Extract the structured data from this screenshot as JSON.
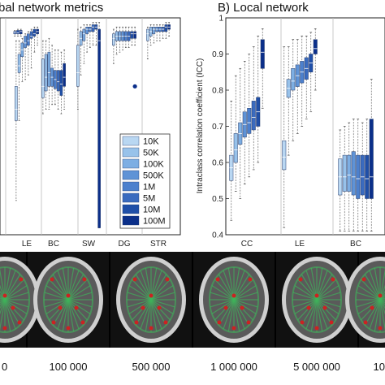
{
  "colors": {
    "series": [
      "#b9d7f2",
      "#98c2ea",
      "#7daee3",
      "#5f93d6",
      "#4c80cd",
      "#3a6bbf",
      "#1f4fa8",
      "#0b2f8a"
    ],
    "brain_bg": "#111111",
    "brain_skull": "#cfcfcf",
    "brain_tissue": "#5a5a5a",
    "brain_fibers": "#3fb35a",
    "brain_nodes": "#cc2222"
  },
  "chart_data": [
    {
      "type": "boxplot",
      "panel": "A",
      "title": "bal network metrics",
      "categories": [
        "LE",
        "BC",
        "SW",
        "DG",
        "STR"
      ],
      "category_labels_visible": [
        "",
        "LE",
        "BC",
        "SW",
        "DG",
        "STR"
      ],
      "series_names": [
        "10K",
        "50K",
        "100K",
        "500K",
        "1M",
        "5M",
        "10M",
        "100M"
      ],
      "legend_position": "lower-right",
      "groups": [
        {
          "category": "",
          "boxes": [
            {
              "whislo": 0.92,
              "q1": 0.93,
              "med": 0.935,
              "q3": 0.94,
              "whishi": 0.945
            },
            {
              "whislo": 0.92,
              "q1": 0.93,
              "med": 0.935,
              "q3": 0.945,
              "whishi": 0.95
            },
            {
              "whislo": 0.92,
              "q1": 0.93,
              "med": 0.94,
              "q3": 0.945,
              "whishi": 0.95
            }
          ]
        },
        {
          "category": "LE",
          "boxes": [
            {
              "whislo": 0.2,
              "q1": 0.55,
              "med": 0.6,
              "q3": 0.7,
              "whishi": 0.9
            },
            {
              "whislo": 0.55,
              "q1": 0.76,
              "med": 0.79,
              "q3": 0.84,
              "whishi": 0.9
            },
            {
              "whislo": 0.72,
              "q1": 0.83,
              "med": 0.86,
              "q3": 0.89,
              "whishi": 0.91
            },
            {
              "whislo": 0.73,
              "q1": 0.87,
              "med": 0.89,
              "q3": 0.92,
              "whishi": 0.93
            },
            {
              "whislo": 0.75,
              "q1": 0.88,
              "med": 0.9,
              "q3": 0.93,
              "whishi": 0.94
            },
            {
              "whislo": 0.78,
              "q1": 0.91,
              "med": 0.92,
              "q3": 0.94,
              "whishi": 0.95
            },
            {
              "whislo": 0.85,
              "q1": 0.92,
              "med": 0.93,
              "q3": 0.95,
              "whishi": 0.96
            },
            {
              "whislo": 0.88,
              "q1": 0.93,
              "med": 0.94,
              "q3": 0.95,
              "whishi": 0.96
            }
          ]
        },
        {
          "category": "BC",
          "boxes": [
            {
              "whislo": 0.58,
              "q1": 0.65,
              "med": 0.7,
              "q3": 0.82,
              "whishi": 0.9
            },
            {
              "whislo": 0.6,
              "q1": 0.68,
              "med": 0.74,
              "q3": 0.84,
              "whishi": 0.9
            },
            {
              "whislo": 0.6,
              "q1": 0.7,
              "med": 0.76,
              "q3": 0.85,
              "whishi": 0.91
            },
            {
              "whislo": 0.62,
              "q1": 0.7,
              "med": 0.74,
              "q3": 0.78,
              "whishi": 0.88
            },
            {
              "whislo": 0.62,
              "q1": 0.69,
              "med": 0.73,
              "q3": 0.77,
              "whishi": 0.86
            },
            {
              "whislo": 0.6,
              "q1": 0.68,
              "med": 0.72,
              "q3": 0.77,
              "whishi": 0.86
            },
            {
              "whislo": 0.58,
              "q1": 0.66,
              "med": 0.71,
              "q3": 0.77,
              "whishi": 0.85
            },
            {
              "whislo": 0.6,
              "q1": 0.7,
              "med": 0.74,
              "q3": 0.8,
              "whishi": 0.86
            }
          ]
        },
        {
          "category": "SW",
          "boxes": [
            {
              "whislo": 0.6,
              "q1": 0.7,
              "med": 0.76,
              "q3": 0.88,
              "whishi": 0.95
            },
            {
              "whislo": 0.75,
              "q1": 0.88,
              "med": 0.91,
              "q3": 0.94,
              "whishi": 0.96
            },
            {
              "whislo": 0.8,
              "q1": 0.9,
              "med": 0.93,
              "q3": 0.95,
              "whishi": 0.97
            },
            {
              "whislo": 0.85,
              "q1": 0.93,
              "med": 0.95,
              "q3": 0.96,
              "whishi": 0.97
            },
            {
              "whislo": 0.87,
              "q1": 0.94,
              "med": 0.95,
              "q3": 0.96,
              "whishi": 0.97
            },
            {
              "whislo": 0.88,
              "q1": 0.94,
              "med": 0.96,
              "q3": 0.97,
              "whishi": 0.98
            },
            {
              "whislo": 0.88,
              "q1": 0.95,
              "med": 0.96,
              "q3": 0.97,
              "whishi": 0.98
            },
            {
              "whislo": 0.08,
              "q1": 0.08,
              "med": 0.9,
              "q3": 0.95,
              "whishi": 0.98
            }
          ]
        },
        {
          "category": "DG",
          "boxes": [
            {
              "whislo": 0.8,
              "q1": 0.88,
              "med": 0.91,
              "q3": 0.93,
              "whishi": 0.95
            },
            {
              "whislo": 0.84,
              "q1": 0.9,
              "med": 0.92,
              "q3": 0.94,
              "whishi": 0.96
            },
            {
              "whislo": 0.85,
              "q1": 0.9,
              "med": 0.92,
              "q3": 0.94,
              "whishi": 0.96
            },
            {
              "whislo": 0.86,
              "q1": 0.9,
              "med": 0.92,
              "q3": 0.94,
              "whishi": 0.96
            },
            {
              "whislo": 0.87,
              "q1": 0.9,
              "med": 0.92,
              "q3": 0.94,
              "whishi": 0.96
            },
            {
              "whislo": 0.87,
              "q1": 0.9,
              "med": 0.92,
              "q3": 0.94,
              "whishi": 0.96
            },
            {
              "whislo": 0.88,
              "q1": 0.91,
              "med": 0.93,
              "q3": 0.94,
              "whishi": 0.96
            },
            {
              "whislo": 0.88,
              "q1": 0.91,
              "med": 0.93,
              "q3": 0.94,
              "whishi": 0.96,
              "outliers": [
                0.7
              ]
            }
          ]
        },
        {
          "category": "STR",
          "boxes": [
            {
              "whislo": 0.82,
              "q1": 0.9,
              "med": 0.93,
              "q3": 0.95,
              "whishi": 0.96
            },
            {
              "whislo": 0.88,
              "q1": 0.92,
              "med": 0.94,
              "q3": 0.96,
              "whishi": 0.97
            },
            {
              "whislo": 0.89,
              "q1": 0.93,
              "med": 0.95,
              "q3": 0.96,
              "whishi": 0.97
            },
            {
              "whislo": 0.9,
              "q1": 0.94,
              "med": 0.95,
              "q3": 0.96,
              "whishi": 0.97
            },
            {
              "whislo": 0.9,
              "q1": 0.94,
              "med": 0.95,
              "q3": 0.96,
              "whishi": 0.97
            },
            {
              "whislo": 0.91,
              "q1": 0.94,
              "med": 0.95,
              "q3": 0.96,
              "whishi": 0.97
            },
            {
              "whislo": 0.91,
              "q1": 0.94,
              "med": 0.96,
              "q3": 0.97,
              "whishi": 0.98
            },
            {
              "whislo": 0.92,
              "q1": 0.95,
              "med": 0.96,
              "q3": 0.97,
              "whishi": 0.98
            }
          ]
        }
      ]
    },
    {
      "type": "boxplot",
      "panel": "B",
      "title": "B) Local network",
      "ylabel": "Intraclass correlation coefficient (ICC)",
      "ylim": [
        0.4,
        1.0
      ],
      "yticks": [
        "0.4",
        "0.5",
        "0.6",
        "0.7",
        "0.8",
        "0.9",
        "1"
      ],
      "categories": [
        "CC",
        "LE",
        "BC"
      ],
      "series_names": [
        "10K",
        "50K",
        "100K",
        "500K",
        "1M",
        "5M",
        "10M",
        "100M"
      ],
      "groups": [
        {
          "category": "CC",
          "boxes": [
            {
              "whislo": 0.44,
              "q1": 0.55,
              "med": 0.585,
              "q3": 0.62,
              "whishi": 0.77
            },
            {
              "whislo": 0.52,
              "q1": 0.6,
              "med": 0.635,
              "q3": 0.68,
              "whishi": 0.84
            },
            {
              "whislo": 0.5,
              "q1": 0.65,
              "med": 0.68,
              "q3": 0.71,
              "whishi": 0.86
            },
            {
              "whislo": 0.54,
              "q1": 0.67,
              "med": 0.705,
              "q3": 0.74,
              "whishi": 0.88
            },
            {
              "whislo": 0.56,
              "q1": 0.68,
              "med": 0.71,
              "q3": 0.75,
              "whishi": 0.9
            },
            {
              "whislo": 0.58,
              "q1": 0.69,
              "med": 0.725,
              "q3": 0.77,
              "whishi": 0.92
            },
            {
              "whislo": 0.6,
              "q1": 0.7,
              "med": 0.74,
              "q3": 0.78,
              "whishi": 0.95
            },
            {
              "whislo": 0.75,
              "q1": 0.86,
              "med": 0.905,
              "q3": 0.94,
              "whishi": 0.97
            }
          ]
        },
        {
          "category": "LE",
          "boxes": [
            {
              "whislo": 0.42,
              "q1": 0.58,
              "med": 0.615,
              "q3": 0.66,
              "whishi": 0.92
            },
            {
              "whislo": 0.62,
              "q1": 0.78,
              "med": 0.805,
              "q3": 0.83,
              "whishi": 0.92
            },
            {
              "whislo": 0.66,
              "q1": 0.8,
              "med": 0.825,
              "q3": 0.86,
              "whishi": 0.94
            },
            {
              "whislo": 0.68,
              "q1": 0.81,
              "med": 0.84,
              "q3": 0.87,
              "whishi": 0.94
            },
            {
              "whislo": 0.7,
              "q1": 0.82,
              "med": 0.85,
              "q3": 0.88,
              "whishi": 0.95
            },
            {
              "whislo": 0.72,
              "q1": 0.83,
              "med": 0.86,
              "q3": 0.89,
              "whishi": 0.95
            },
            {
              "whislo": 0.74,
              "q1": 0.85,
              "med": 0.875,
              "q3": 0.9,
              "whishi": 0.96
            },
            {
              "whislo": 0.8,
              "q1": 0.9,
              "med": 0.915,
              "q3": 0.94,
              "whishi": 0.97
            }
          ]
        },
        {
          "category": "BC",
          "boxes": [
            {
              "whislo": 0.41,
              "q1": 0.51,
              "med": 0.56,
              "q3": 0.61,
              "whishi": 0.69
            },
            {
              "whislo": 0.41,
              "q1": 0.52,
              "med": 0.56,
              "q3": 0.62,
              "whishi": 0.7
            },
            {
              "whislo": 0.41,
              "q1": 0.52,
              "med": 0.565,
              "q3": 0.62,
              "whishi": 0.71
            },
            {
              "whislo": 0.41,
              "q1": 0.51,
              "med": 0.56,
              "q3": 0.63,
              "whishi": 0.72
            },
            {
              "whislo": 0.41,
              "q1": 0.5,
              "med": 0.555,
              "q3": 0.62,
              "whishi": 0.72
            },
            {
              "whislo": 0.41,
              "q1": 0.51,
              "med": 0.56,
              "q3": 0.62,
              "whishi": 0.71
            },
            {
              "whislo": 0.41,
              "q1": 0.5,
              "med": 0.555,
              "q3": 0.62,
              "whishi": 0.72
            },
            {
              "whislo": 0.41,
              "q1": 0.5,
              "med": 0.56,
              "q3": 0.72,
              "whishi": 0.83
            }
          ]
        }
      ]
    }
  ],
  "brain_labels": [
    "0",
    "100 000",
    "500 000",
    "1 000 000",
    "5 000 000",
    "10"
  ]
}
